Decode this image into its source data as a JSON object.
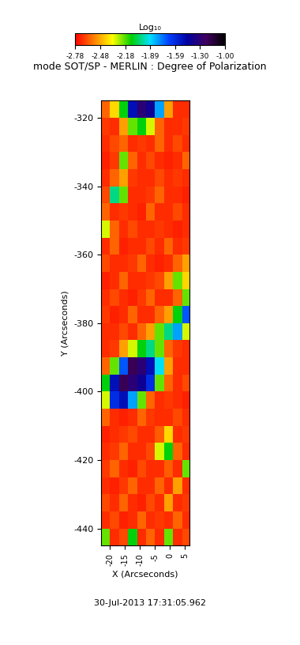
{
  "chart_data": {
    "type": "heatmap",
    "title": "mode SOT/SP - MERLIN : Degree of Polarization",
    "x_label": "X (Arcseconds)",
    "y_label": "Y (Arcseconds)",
    "annotations": [
      "30-Jul-2013 17:31:05.962"
    ],
    "x_edges": [
      -23,
      -20,
      -17,
      -14,
      -11,
      -8,
      -5,
      -2,
      1,
      4,
      6.5
    ],
    "y_edges": [
      -445,
      -440,
      -435,
      -430,
      -425,
      -420,
      -415,
      -410,
      -405,
      -400,
      -395,
      -390,
      -385,
      -380,
      -375,
      -370,
      -365,
      -360,
      -355,
      -350,
      -345,
      -340,
      -335,
      -330,
      -325,
      -320,
      -315
    ],
    "cells": [
      [
        -2.2,
        -2.7,
        -2.65,
        -2.1,
        -2.7,
        -2.6,
        -2.7,
        -2.2,
        -2.7,
        -2.65
      ],
      [
        -2.7,
        -2.65,
        -2.72,
        -2.7,
        -2.6,
        -2.7,
        -2.68,
        -2.7,
        -2.6,
        -2.7
      ],
      [
        -2.65,
        -2.7,
        -2.6,
        -2.7,
        -2.72,
        -2.65,
        -2.7,
        -2.5,
        -2.7,
        -2.68
      ],
      [
        -2.7,
        -2.72,
        -2.68,
        -2.6,
        -2.7,
        -2.7,
        -2.6,
        -2.7,
        -2.5,
        -2.7
      ],
      [
        -2.68,
        -2.6,
        -2.7,
        -2.72,
        -2.65,
        -2.7,
        -2.7,
        -2.62,
        -2.7,
        -2.2
      ],
      [
        -2.7,
        -2.68,
        -2.6,
        -2.7,
        -2.7,
        -2.65,
        -2.3,
        -2.1,
        -2.6,
        -2.7
      ],
      [
        -2.72,
        -2.7,
        -2.68,
        -2.65,
        -2.7,
        -2.7,
        -2.62,
        -2.4,
        -2.7,
        -2.68
      ],
      [
        -2.6,
        -2.7,
        -2.72,
        -2.7,
        -2.6,
        -2.68,
        -2.7,
        -2.7,
        -2.65,
        -2.7
      ],
      [
        -2.3,
        -1.6,
        -1.5,
        -1.8,
        -2.2,
        -2.6,
        -2.7,
        -2.68,
        -2.7,
        -2.72
      ],
      [
        -2.1,
        -1.5,
        -1.2,
        -1.3,
        -1.4,
        -1.6,
        -2.2,
        -2.6,
        -2.7,
        -2.65
      ],
      [
        -2.6,
        -2.2,
        -1.7,
        -1.2,
        -1.3,
        -1.5,
        -1.9,
        -2.5,
        -2.7,
        -2.7
      ],
      [
        -2.7,
        -2.68,
        -2.5,
        -2.3,
        -2.1,
        -2.0,
        -2.2,
        -2.6,
        -2.68,
        -2.7
      ],
      [
        -2.7,
        -2.7,
        -2.65,
        -2.7,
        -2.6,
        -2.5,
        -2.2,
        -2.0,
        -1.8,
        -2.3
      ],
      [
        -2.68,
        -2.72,
        -2.7,
        -2.6,
        -2.7,
        -2.7,
        -2.6,
        -2.5,
        -2.1,
        -1.7
      ],
      [
        -2.7,
        -2.65,
        -2.7,
        -2.72,
        -2.68,
        -2.6,
        -2.7,
        -2.7,
        -2.6,
        -2.2
      ],
      [
        -2.72,
        -2.7,
        -2.6,
        -2.7,
        -2.7,
        -2.68,
        -2.65,
        -2.5,
        -2.2,
        -2.4
      ],
      [
        -2.65,
        -2.7,
        -2.7,
        -2.68,
        -2.6,
        -2.7,
        -2.72,
        -2.7,
        -2.6,
        -2.5
      ],
      [
        -2.7,
        -2.6,
        -2.72,
        -2.7,
        -2.7,
        -2.65,
        -2.7,
        -2.6,
        -2.7,
        -2.68
      ],
      [
        -2.3,
        -2.6,
        -2.7,
        -2.65,
        -2.7,
        -2.7,
        -2.68,
        -2.7,
        -2.72,
        -2.7
      ],
      [
        -2.6,
        -2.7,
        -2.68,
        -2.7,
        -2.72,
        -2.6,
        -2.7,
        -2.7,
        -2.65,
        -2.7
      ],
      [
        -2.65,
        -2.0,
        -2.2,
        -2.7,
        -2.7,
        -2.68,
        -2.6,
        -2.7,
        -2.7,
        -2.72
      ],
      [
        -2.7,
        -2.6,
        -2.5,
        -2.68,
        -2.7,
        -2.7,
        -2.65,
        -2.7,
        -2.68,
        -2.7
      ],
      [
        -2.72,
        -2.68,
        -2.2,
        -2.6,
        -2.7,
        -2.65,
        -2.7,
        -2.72,
        -2.7,
        -2.6
      ],
      [
        -2.7,
        -2.65,
        -2.6,
        -2.7,
        -2.68,
        -2.7,
        -2.6,
        -2.7,
        -2.65,
        -2.7
      ],
      [
        -2.68,
        -2.7,
        -2.5,
        -2.2,
        -2.1,
        -2.3,
        -2.6,
        -2.7,
        -2.7,
        -2.68
      ],
      [
        -2.6,
        -2.4,
        -2.1,
        -1.5,
        -1.3,
        -1.4,
        -1.8,
        -2.5,
        -2.7,
        -2.7
      ]
    ],
    "xlim": [
      -23,
      6.5
    ],
    "ylim": [
      -445,
      -315
    ],
    "xticks": [
      -20,
      -15,
      -10,
      -5,
      0,
      5
    ],
    "yticks": [
      -440,
      -420,
      -400,
      -380,
      -360,
      -340,
      -320
    ],
    "colorbar": {
      "label": "Log₁₀",
      "range": [
        -2.78,
        -1.0
      ],
      "ticks": [
        -2.78,
        -2.48,
        -2.18,
        -1.89,
        -1.59,
        {
          "value": -1.3,
          "label": "-1.30"
        },
        {
          "value": -1.0,
          "label": "-1.00"
        }
      ]
    }
  }
}
